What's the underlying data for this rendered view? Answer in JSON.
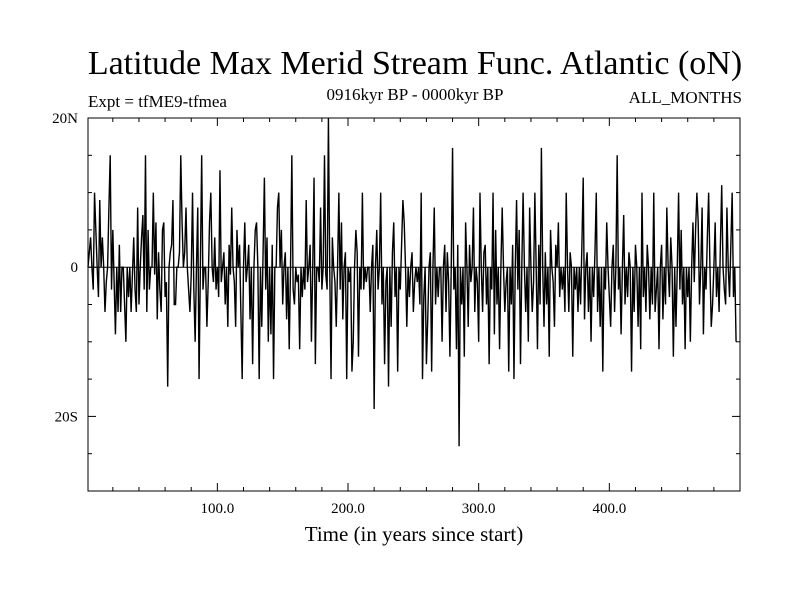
{
  "header": {
    "title": "Latitude Max Merid Stream Func. Atlantic (oN)",
    "experiment": "Expt = tfME9-tfmea",
    "period": "0916kyr BP - 0000kyr BP",
    "months": "ALL_MONTHS"
  },
  "chart_data": {
    "type": "line",
    "title": "Latitude Max Merid Stream Func. Atlantic (oN)",
    "xlabel": "Time (in years since start)",
    "ylabel": "",
    "xlim": [
      1,
      500
    ],
    "ylim": [
      -30,
      20
    ],
    "x_ticks": [
      {
        "value": 100,
        "label": "100.0"
      },
      {
        "value": 200,
        "label": "200.0"
      },
      {
        "value": 300,
        "label": "300.0"
      },
      {
        "value": 400,
        "label": "400.0"
      }
    ],
    "y_ticks": [
      {
        "value": 20,
        "label": "20N"
      },
      {
        "value": 0,
        "label": "0"
      },
      {
        "value": -20,
        "label": "20S"
      }
    ],
    "y_minor_ticks": [
      15,
      10,
      5,
      -5,
      -10,
      -15,
      -25
    ],
    "grid": false,
    "zero_line": true,
    "series": [
      {
        "color": "#000000",
        "x_start": 1,
        "x_step": 1,
        "values": [
          0,
          2,
          4,
          0,
          -3,
          10,
          5,
          0,
          -4,
          9,
          0,
          4,
          0,
          -6,
          -2,
          0,
          8,
          15,
          -3,
          5,
          -2,
          -9,
          0,
          -6,
          3,
          -6,
          0,
          0,
          -5,
          -10,
          0,
          -4,
          0,
          -6,
          -1,
          4,
          -3,
          -6,
          8,
          -5,
          0,
          4,
          7,
          -3,
          15,
          -6,
          5,
          -3,
          0,
          0,
          10,
          -1,
          6,
          -7,
          2,
          -3,
          -6,
          5,
          6,
          -4,
          -2,
          -16,
          0,
          2,
          3,
          9,
          -5,
          -5,
          0,
          0,
          2,
          15,
          6,
          0,
          2,
          8,
          0,
          -3,
          -6,
          -1,
          10,
          -3,
          -10,
          0,
          8,
          -15,
          0,
          15,
          -3,
          0,
          0,
          -8,
          -2,
          6,
          10,
          0,
          -2,
          4,
          -3,
          0,
          -4,
          13,
          -2,
          0,
          2,
          -5,
          0,
          -8,
          3,
          -1,
          8,
          0,
          -2,
          -8,
          5,
          0,
          3,
          -6,
          -15,
          0,
          6,
          -2,
          0,
          3,
          -7,
          0,
          -13,
          0,
          5,
          6,
          0,
          -15,
          0,
          -8,
          2,
          12,
          -3,
          4,
          -10,
          0,
          -9,
          3,
          -15,
          0,
          0,
          8,
          10,
          0,
          5,
          -5,
          0,
          2,
          -7,
          0,
          -11,
          0,
          15,
          -3,
          -5,
          0,
          -2,
          -1,
          -11,
          0,
          -4,
          0,
          -3,
          9,
          -2,
          0,
          3,
          -10,
          0,
          12,
          -13,
          0,
          0,
          -2,
          8,
          -3,
          0,
          15,
          -1,
          -3,
          20,
          0,
          -15,
          4,
          0,
          -2,
          -8,
          0,
          10,
          -3,
          6,
          -7,
          0,
          2,
          -15,
          0,
          -2,
          0,
          -14,
          -10,
          0,
          5,
          2,
          -12,
          0,
          -3,
          10,
          -3,
          0,
          -2,
          0,
          0,
          -6,
          0,
          3,
          -19,
          0,
          5,
          -3,
          0,
          10,
          -5,
          0,
          -13,
          -2,
          0,
          -16,
          0,
          -8,
          2,
          6,
          -4,
          0,
          -14,
          0,
          -3,
          3,
          9,
          6,
          0,
          -8,
          0,
          -4,
          0,
          2,
          -6,
          -2,
          0,
          -2,
          0,
          -5,
          10,
          -15,
          -4,
          0,
          -13,
          -7,
          0,
          2,
          -14,
          0,
          8,
          -5,
          0,
          -4,
          0,
          0,
          -10,
          0,
          3,
          -6,
          2,
          -2,
          -12,
          0,
          16,
          -3,
          0,
          -11,
          3,
          -24,
          0,
          -5,
          0,
          -12,
          6,
          0,
          -8,
          3,
          -2,
          0,
          8,
          -6,
          0,
          -2,
          -10,
          10,
          0,
          -6,
          2,
          3,
          -5,
          0,
          -13,
          0,
          -3,
          10,
          -9,
          5,
          -5,
          0,
          -11,
          0,
          8,
          0,
          -6,
          -2,
          0,
          -14,
          0,
          -5,
          3,
          -15,
          0,
          9,
          -3,
          5,
          -13,
          0,
          10,
          0,
          -6,
          0,
          -10,
          8,
          0,
          -6,
          -2,
          10,
          0,
          -11,
          3,
          -5,
          16,
          0,
          -8,
          2,
          -5,
          0,
          -12,
          5,
          0,
          -2,
          -8,
          3,
          0,
          6,
          -4,
          0,
          -3,
          0,
          -6,
          10,
          0,
          -6,
          2,
          0,
          -12,
          0,
          -3,
          0,
          -6,
          0,
          -5,
          3,
          12,
          -7,
          0,
          2,
          -6,
          0,
          -10,
          0,
          -4,
          2,
          10,
          -6,
          0,
          -8,
          0,
          -14,
          0,
          -3,
          6,
          0,
          -4,
          -8,
          0,
          3,
          -6,
          0,
          15,
          -3,
          0,
          -9,
          0,
          7,
          -5,
          0,
          -4,
          2,
          0,
          -14,
          0,
          -6,
          3,
          0,
          -8,
          0,
          -11,
          10,
          -4,
          0,
          -6,
          3,
          0,
          -7,
          0,
          -5,
          10,
          -6,
          -3,
          0,
          -11,
          0,
          3,
          -7,
          0,
          -5,
          8,
          0,
          -4,
          4,
          0,
          -12,
          0,
          -8,
          0,
          10,
          -3,
          5,
          -5,
          0,
          -11,
          0,
          -4,
          0,
          -10,
          0,
          6,
          -2,
          5,
          10,
          6,
          -5,
          0,
          8,
          -9,
          0,
          -3,
          4,
          10,
          0,
          -8,
          -5,
          0,
          6,
          -4,
          0,
          -6,
          3,
          11,
          0,
          -3,
          -5,
          8,
          0,
          -4,
          3,
          10,
          -4,
          0,
          -10
        ]
      }
    ]
  }
}
